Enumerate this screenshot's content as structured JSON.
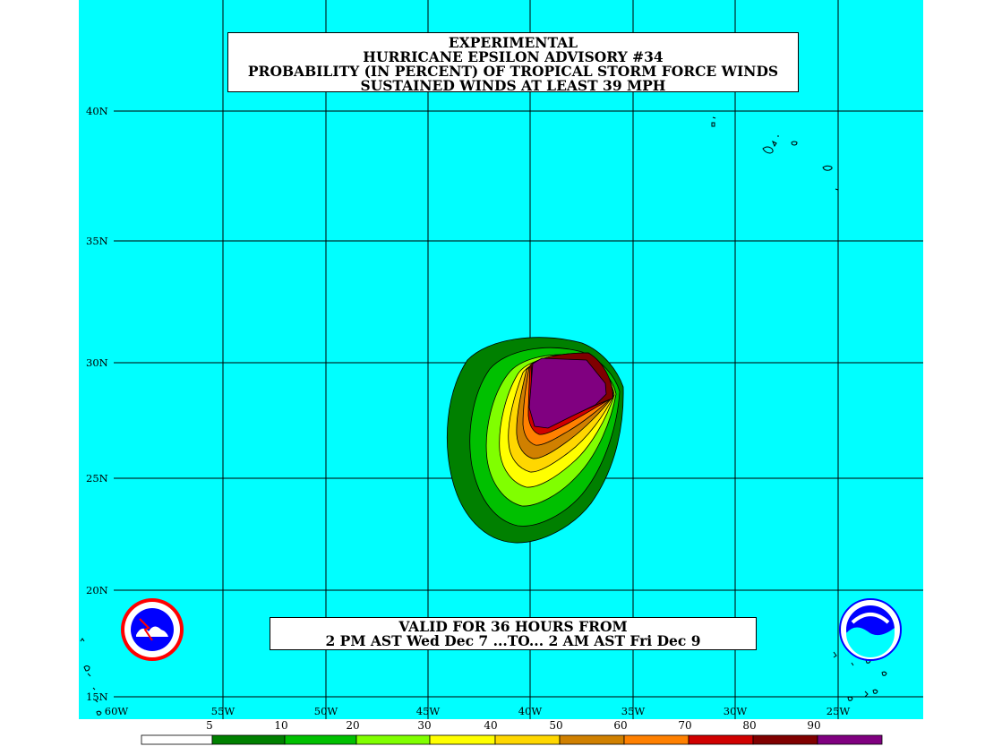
{
  "title": {
    "line1": "EXPERIMENTAL",
    "line2": "HURRICANE EPSILON ADVISORY #34",
    "line3": "PROBABILITY (IN PERCENT) OF TROPICAL STORM FORCE WINDS",
    "line4": "SUSTAINED WINDS AT LEAST 39 MPH"
  },
  "valid": {
    "line1": "VALID FOR 36 HOURS FROM",
    "line2": "2 PM AST Wed Dec 7 ...TO... 2 AM AST Fri Dec 9"
  },
  "axes": {
    "lon_labels": [
      "60W",
      "55W",
      "50W",
      "45W",
      "40W",
      "35W",
      "30W",
      "25W"
    ],
    "lat_labels": [
      "40N",
      "35N",
      "30N",
      "25N",
      "20N",
      "15N"
    ]
  },
  "legend": {
    "labels": [
      "5",
      "10",
      "20",
      "30",
      "40",
      "50",
      "60",
      "70",
      "80",
      "90"
    ],
    "colors": [
      "#ffffff",
      "#008000",
      "#00c000",
      "#80ff00",
      "#ffff00",
      "#ffd700",
      "#d08000",
      "#ff8000",
      "#d00000",
      "#800000",
      "#800080"
    ]
  },
  "colors": {
    "ocean": "#00ffff",
    "grid": "#000000"
  },
  "logos": {
    "left": "nws-logo",
    "right": "noaa-logo"
  }
}
